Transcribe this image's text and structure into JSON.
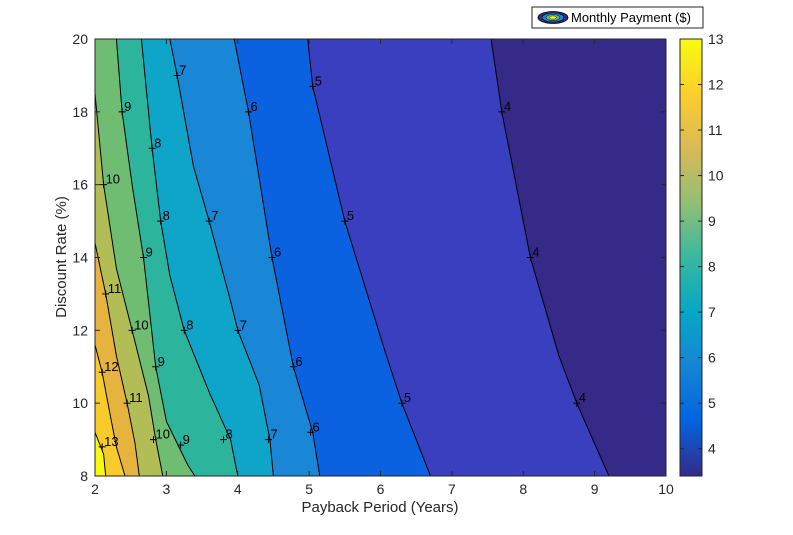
{
  "chart_data": {
    "type": "contour",
    "xlabel": "Payback Period (Years)",
    "ylabel": "Discount Rate (%)",
    "xlim": [
      2,
      10
    ],
    "ylim": [
      8,
      20
    ],
    "xticks": [
      2,
      3,
      4,
      5,
      6,
      7,
      8,
      9,
      10
    ],
    "yticks": [
      8,
      10,
      12,
      14,
      16,
      18,
      20
    ],
    "legend": {
      "label": "Monthly Payment ($)",
      "placement": "top-right"
    },
    "colorbar": {
      "min": 3.4,
      "max": 13,
      "ticks": [
        4,
        5,
        6,
        7,
        8,
        9,
        10,
        11,
        12,
        13
      ]
    },
    "levels": [
      4,
      5,
      6,
      7,
      8,
      9,
      10,
      11,
      12,
      13
    ],
    "level_colors": {
      "3": "#352a87",
      "4": "#3a3fbf",
      "5": "#0b62e0",
      "6": "#1a86d6",
      "7": "#0ea5c9",
      "8": "#2cb59c",
      "9": "#6fbd73",
      "10": "#b3bd56",
      "11": "#e6b43e",
      "12": "#f6cb2a",
      "13": "#f9fb0e"
    },
    "contours": [
      {
        "level": 13,
        "points": [
          [
            2,
            9.2
          ],
          [
            2.12,
            8.6
          ],
          [
            2.15,
            8
          ]
        ]
      },
      {
        "level": 12,
        "points": [
          [
            2,
            11.6
          ],
          [
            2.1,
            10.85
          ],
          [
            2.22,
            9.6
          ],
          [
            2.3,
            8.8
          ],
          [
            2.42,
            8
          ]
        ]
      },
      {
        "level": 11,
        "points": [
          [
            2,
            14.4
          ],
          [
            2.15,
            13
          ],
          [
            2.3,
            11.3
          ],
          [
            2.45,
            10
          ],
          [
            2.56,
            8.9
          ],
          [
            2.62,
            8
          ]
        ]
      },
      {
        "level": 10,
        "points": [
          [
            2,
            18.5
          ],
          [
            2.12,
            16
          ],
          [
            2.3,
            13.7
          ],
          [
            2.52,
            12
          ],
          [
            2.75,
            10.2
          ],
          [
            2.85,
            9
          ],
          [
            2.95,
            8
          ]
        ]
      },
      {
        "level": 9,
        "points": [
          [
            2.3,
            20
          ],
          [
            2.38,
            18
          ],
          [
            2.52,
            16
          ],
          [
            2.68,
            14
          ],
          [
            2.85,
            11
          ],
          [
            3,
            9.5
          ],
          [
            3.3,
            8.3
          ],
          [
            3.4,
            8
          ]
        ]
      },
      {
        "level": 8,
        "points": [
          [
            2.65,
            20
          ],
          [
            2.8,
            17
          ],
          [
            2.92,
            15
          ],
          [
            3.05,
            13.5
          ],
          [
            3.25,
            12
          ],
          [
            3.6,
            10.3
          ],
          [
            3.9,
            9
          ],
          [
            4,
            8
          ]
        ]
      },
      {
        "level": 7,
        "points": [
          [
            3.05,
            20
          ],
          [
            3.15,
            19
          ],
          [
            3.38,
            16.5
          ],
          [
            3.6,
            15
          ],
          [
            3.9,
            12.8
          ],
          [
            4,
            12
          ],
          [
            4.3,
            10.5
          ],
          [
            4.45,
            9
          ],
          [
            4.5,
            8
          ]
        ]
      },
      {
        "level": 6,
        "points": [
          [
            3.95,
            20
          ],
          [
            4.15,
            18
          ],
          [
            4.48,
            14
          ],
          [
            4.78,
            11
          ],
          [
            5.05,
            9.2
          ],
          [
            5.15,
            8
          ]
        ]
      },
      {
        "level": 5,
        "points": [
          [
            4.98,
            20
          ],
          [
            5.05,
            18.7
          ],
          [
            5.5,
            15
          ],
          [
            6.05,
            11.5
          ],
          [
            6.3,
            10
          ],
          [
            6.7,
            8
          ]
        ]
      },
      {
        "level": 4,
        "points": [
          [
            7.55,
            20
          ],
          [
            7.7,
            18
          ],
          [
            8.1,
            14
          ],
          [
            8.5,
            11.3
          ],
          [
            8.75,
            10
          ],
          [
            9.2,
            8
          ]
        ]
      }
    ],
    "labels": [
      {
        "text": "13",
        "x": 2.1,
        "y": 8.8
      },
      {
        "text": "12",
        "x": 2.1,
        "y": 10.85
      },
      {
        "text": "11",
        "x": 2.15,
        "y": 13
      },
      {
        "text": "10",
        "x": 2.12,
        "y": 16
      },
      {
        "text": "11",
        "x": 2.45,
        "y": 10
      },
      {
        "text": "10",
        "x": 2.52,
        "y": 12
      },
      {
        "text": "10",
        "x": 2.82,
        "y": 9
      },
      {
        "text": "9",
        "x": 2.38,
        "y": 18
      },
      {
        "text": "9",
        "x": 2.68,
        "y": 14
      },
      {
        "text": "9",
        "x": 2.85,
        "y": 11
      },
      {
        "text": "9",
        "x": 3.2,
        "y": 8.85
      },
      {
        "text": "8",
        "x": 2.8,
        "y": 17
      },
      {
        "text": "8",
        "x": 2.92,
        "y": 15
      },
      {
        "text": "8",
        "x": 3.25,
        "y": 12
      },
      {
        "text": "8",
        "x": 3.8,
        "y": 9
      },
      {
        "text": "7",
        "x": 3.15,
        "y": 19
      },
      {
        "text": "7",
        "x": 3.6,
        "y": 15
      },
      {
        "text": "7",
        "x": 4,
        "y": 12
      },
      {
        "text": "7",
        "x": 4.43,
        "y": 9
      },
      {
        "text": "6",
        "x": 4.15,
        "y": 18
      },
      {
        "text": "6",
        "x": 4.48,
        "y": 14
      },
      {
        "text": "6",
        "x": 4.78,
        "y": 11
      },
      {
        "text": "6",
        "x": 5.02,
        "y": 9.2
      },
      {
        "text": "5",
        "x": 5.05,
        "y": 18.7
      },
      {
        "text": "5",
        "x": 5.5,
        "y": 15
      },
      {
        "text": "5",
        "x": 6.3,
        "y": 10
      },
      {
        "text": "4",
        "x": 7.7,
        "y": 18
      },
      {
        "text": "4",
        "x": 8.1,
        "y": 14
      },
      {
        "text": "4",
        "x": 8.75,
        "y": 10
      }
    ]
  }
}
